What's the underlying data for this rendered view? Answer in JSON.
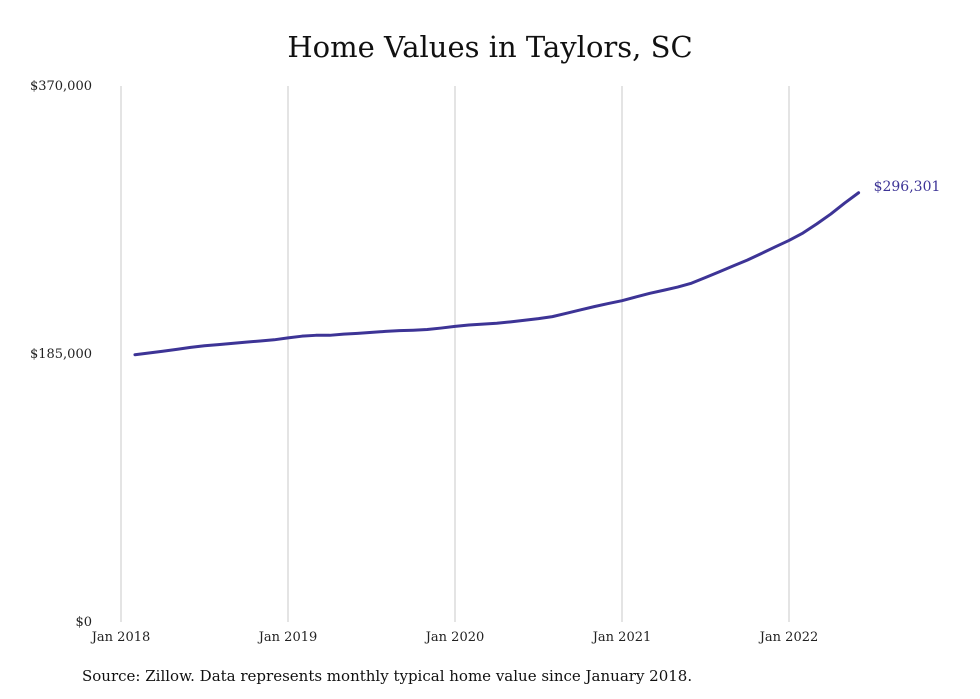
{
  "chart_data": {
    "type": "line",
    "title": "Home Values in Taylors, SC",
    "xlabel": "",
    "ylabel": "",
    "x_tick_labels": [
      "Jan 2018",
      "Jan 2019",
      "Jan 2020",
      "Jan 2021",
      "Jan 2022"
    ],
    "y_tick_labels": [
      "$0",
      "$185,000",
      "$370,000"
    ],
    "ylim": [
      0,
      370000
    ],
    "xlim": [
      "2018-01",
      "2022-07"
    ],
    "grid": "vertical",
    "legend": "none",
    "line_color": "#3d3496",
    "end_label": "$296,301",
    "series": [
      {
        "x": [
          "2018-02",
          "2018-03",
          "2018-04",
          "2018-05",
          "2018-06",
          "2018-07",
          "2018-08",
          "2018-09",
          "2018-10",
          "2018-11",
          "2018-12",
          "2019-01",
          "2019-02",
          "2019-03",
          "2019-04",
          "2019-05",
          "2019-06",
          "2019-07",
          "2019-08",
          "2019-09",
          "2019-10",
          "2019-11",
          "2019-12",
          "2020-01",
          "2020-02",
          "2020-03",
          "2020-04",
          "2020-05",
          "2020-06",
          "2020-07",
          "2020-08",
          "2020-09",
          "2020-10",
          "2020-11",
          "2020-12",
          "2021-01",
          "2021-02",
          "2021-03",
          "2021-04",
          "2021-05",
          "2021-06",
          "2021-07",
          "2021-08",
          "2021-09",
          "2021-10",
          "2021-11",
          "2021-12",
          "2022-01",
          "2022-02",
          "2022-03",
          "2022-04",
          "2022-05",
          "2022-06"
        ],
        "y": [
          184500,
          185700,
          186900,
          188200,
          189600,
          190700,
          191500,
          192300,
          193200,
          194000,
          194800,
          196100,
          197300,
          197900,
          197900,
          198700,
          199200,
          199900,
          200600,
          201100,
          201400,
          201900,
          202900,
          204100,
          205000,
          205600,
          206200,
          207200,
          208300,
          209400,
          210800,
          213100,
          215400,
          217700,
          219800,
          221800,
          224400,
          226900,
          229000,
          231200,
          233900,
          237800,
          241800,
          245800,
          249800,
          254300,
          258900,
          263400,
          268500,
          274800,
          281600,
          289200,
          296301
        ]
      }
    ]
  },
  "source_text": "Source: Zillow. Data represents monthly typical home value since January 2018."
}
